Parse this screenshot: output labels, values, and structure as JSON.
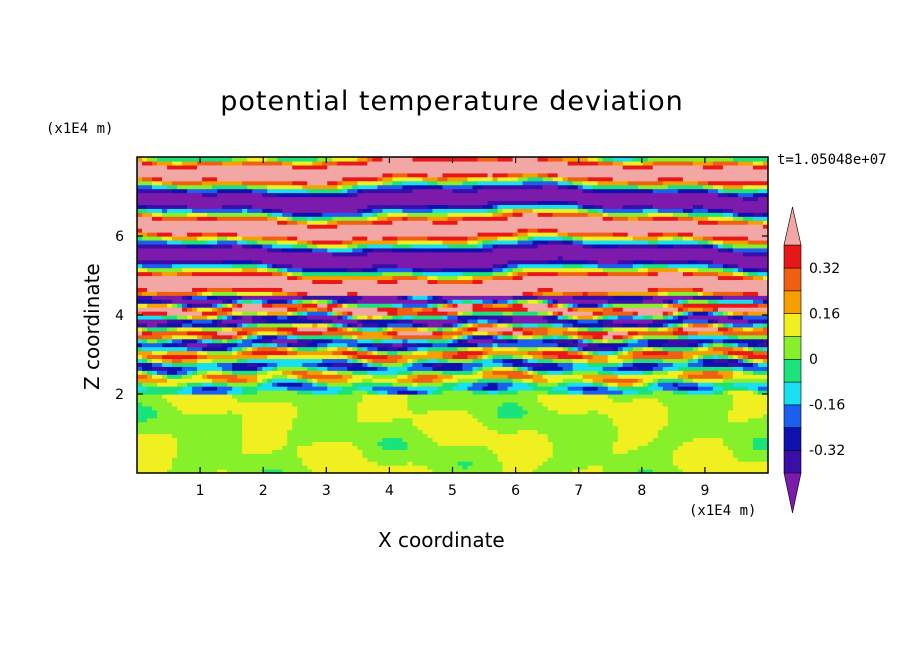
{
  "chart_data": {
    "type": "heatmap",
    "title": "potential temperature deviation",
    "time_label": "t=1.05048e+07",
    "xlabel": "X coordinate",
    "ylabel": "Z coordinate",
    "x_unit": "(x1E4 m)",
    "z_unit": "(x1E4 m)",
    "xlim": [
      0,
      10
    ],
    "zlim": [
      0,
      8
    ],
    "x_ticks": [
      1,
      2,
      3,
      4,
      5,
      6,
      7,
      8,
      9
    ],
    "z_ticks": [
      2,
      4,
      6
    ],
    "colorbar": {
      "levels": [
        -0.4,
        -0.32,
        -0.24,
        -0.16,
        -0.08,
        0,
        0.08,
        0.16,
        0.24,
        0.32,
        0.4
      ],
      "labels": [
        "0.32",
        "0.16",
        "0",
        "-0.16",
        "-0.32"
      ],
      "label_values": [
        0.32,
        0.16,
        0,
        -0.16,
        -0.32
      ],
      "colors": [
        "#7c1aab",
        "#3a0fa8",
        "#1010b0",
        "#1a5ff0",
        "#18e0f0",
        "#19e37a",
        "#86f02a",
        "#f0f020",
        "#f6a000",
        "#f06010",
        "#e81818",
        "#f2a7a5"
      ],
      "extend": "both"
    },
    "layers": [
      {
        "z": [
          0,
          2
        ],
        "description": "near-neutral band"
      },
      {
        "z": [
          2,
          4.5
        ],
        "description": "mixed turbulent layer"
      },
      {
        "z": [
          4.5,
          8
        ],
        "description": "alternating strong positive and negative bands"
      }
    ]
  }
}
